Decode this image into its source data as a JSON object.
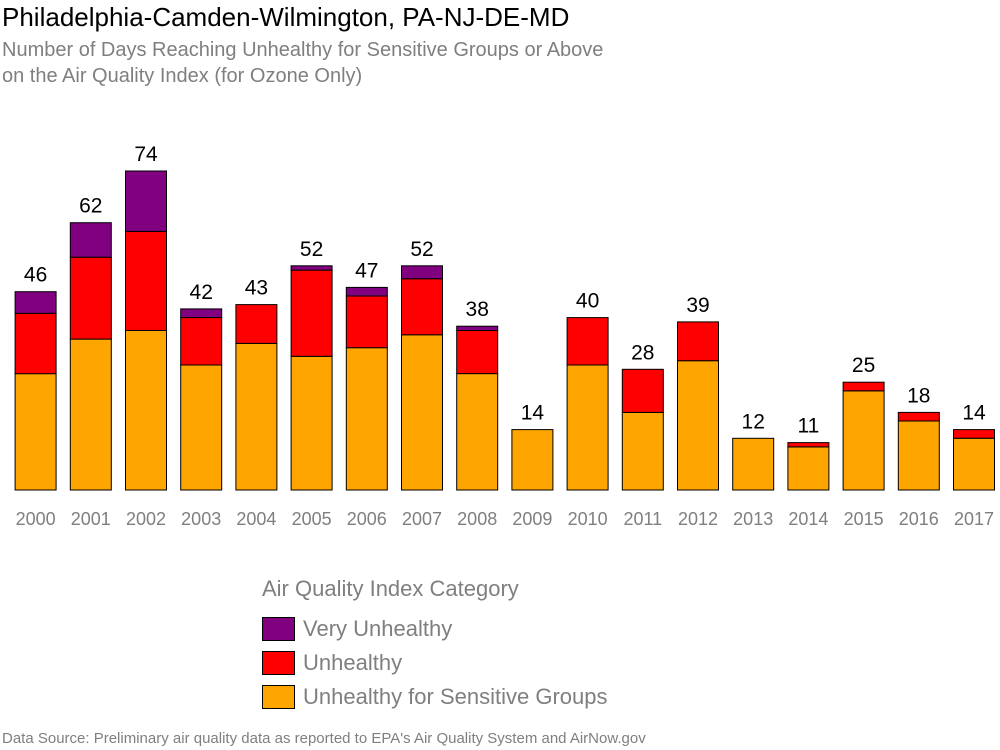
{
  "chart_data": {
    "type": "bar",
    "stacked": true,
    "title": "Philadelphia-Camden-Wilmington, PA-NJ-DE-MD",
    "subtitle": [
      "Number of Days Reaching Unhealthy for Sensitive Groups or Above",
      "on the Air Quality Index (for Ozone Only)"
    ],
    "categories": [
      "2000",
      "2001",
      "2002",
      "2003",
      "2004",
      "2005",
      "2006",
      "2007",
      "2008",
      "2009",
      "2010",
      "2011",
      "2012",
      "2013",
      "2014",
      "2015",
      "2016",
      "2017"
    ],
    "totals": [
      46,
      62,
      74,
      42,
      43,
      52,
      47,
      52,
      38,
      14,
      40,
      28,
      39,
      12,
      11,
      25,
      18,
      14
    ],
    "series": [
      {
        "name": "Unhealthy for Sensitive Groups",
        "color": "#FFA500",
        "values": [
          27,
          35,
          37,
          29,
          34,
          31,
          33,
          36,
          27,
          14,
          29,
          18,
          30,
          12,
          10,
          23,
          16,
          12
        ]
      },
      {
        "name": "Unhealthy",
        "color": "#FF0000",
        "values": [
          14,
          19,
          23,
          11,
          9,
          20,
          12,
          13,
          10,
          0,
          11,
          10,
          9,
          0,
          1,
          2,
          2,
          2
        ]
      },
      {
        "name": "Very Unhealthy",
        "color": "#800080",
        "values": [
          5,
          8,
          14,
          2,
          0,
          1,
          2,
          3,
          1,
          0,
          0,
          0,
          0,
          0,
          0,
          0,
          0,
          0
        ]
      }
    ],
    "ylim": [
      0,
      74
    ],
    "grid": false,
    "legend_title": "Air Quality Index Category",
    "legend_order": [
      "Very Unhealthy",
      "Unhealthy",
      "Unhealthy for Sensitive Groups"
    ],
    "legend_colors": [
      "#800080",
      "#FF0000",
      "#FFA500"
    ],
    "legend_position": "bottom-center",
    "source": "Data Source: Preliminary air quality data as reported to EPA's Air Quality System and AirNow.gov"
  }
}
